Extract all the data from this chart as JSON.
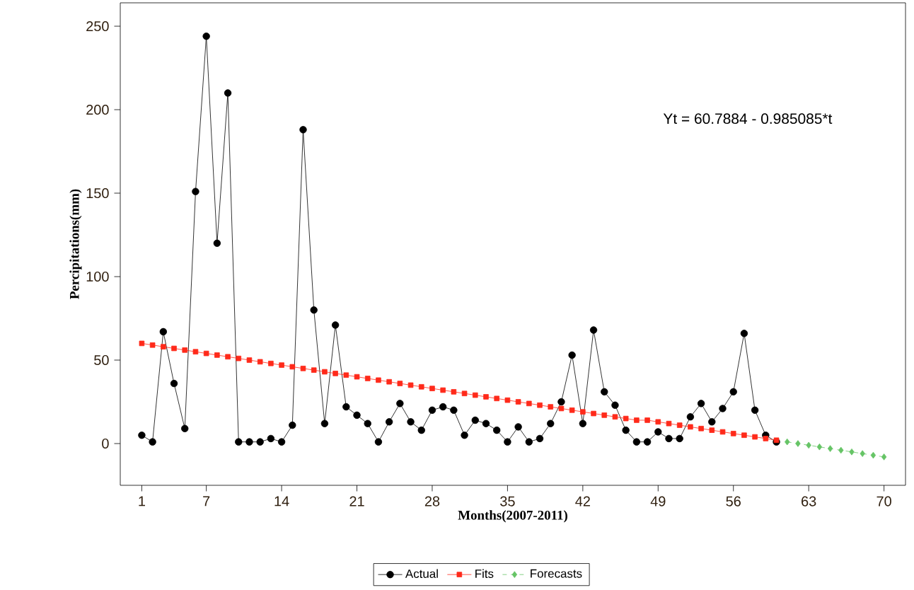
{
  "chart_data": {
    "type": "line",
    "xlabel": "Months(2007-2011)",
    "ylabel": "Percipitations(mm)",
    "annotations": [
      "Yt = 60.7884 - 0.985085*t"
    ],
    "xlim": [
      -1,
      72
    ],
    "ylim": [
      -25,
      264
    ],
    "xticks": [
      1,
      7,
      14,
      21,
      28,
      35,
      42,
      49,
      56,
      63,
      70
    ],
    "yticks": [
      0,
      50,
      100,
      150,
      200,
      250
    ],
    "grid": false,
    "legend": "bottom",
    "series": [
      {
        "name": "Actual",
        "color": "#000000",
        "marker": "circle",
        "line_style": "solid",
        "x": [
          1,
          2,
          3,
          4,
          5,
          6,
          7,
          8,
          9,
          10,
          11,
          12,
          13,
          14,
          15,
          16,
          17,
          18,
          19,
          20,
          21,
          22,
          23,
          24,
          25,
          26,
          27,
          28,
          29,
          30,
          31,
          32,
          33,
          34,
          35,
          36,
          37,
          38,
          39,
          40,
          41,
          42,
          43,
          44,
          45,
          46,
          47,
          48,
          49,
          50,
          51,
          52,
          53,
          54,
          55,
          56,
          57,
          58,
          59,
          60
        ],
        "values": [
          5,
          1,
          67,
          36,
          9,
          151,
          244,
          120,
          210,
          1,
          1,
          1,
          3,
          1,
          11,
          188,
          80,
          12,
          71,
          22,
          17,
          12,
          1,
          13,
          24,
          13,
          8,
          20,
          22,
          20,
          5,
          14,
          12,
          8,
          1,
          10,
          1,
          3,
          12,
          25,
          53,
          12,
          68,
          31,
          23,
          8,
          1,
          1,
          7,
          3,
          3,
          16,
          24,
          13,
          21,
          31,
          66,
          20,
          5,
          1
        ]
      },
      {
        "name": "Fits",
        "color": "#ff2a1a",
        "marker": "square",
        "line_style": "solid",
        "x": [
          1,
          2,
          3,
          4,
          5,
          6,
          7,
          8,
          9,
          10,
          11,
          12,
          13,
          14,
          15,
          16,
          17,
          18,
          19,
          20,
          21,
          22,
          23,
          24,
          25,
          26,
          27,
          28,
          29,
          30,
          31,
          32,
          33,
          34,
          35,
          36,
          37,
          38,
          39,
          40,
          41,
          42,
          43,
          44,
          45,
          46,
          47,
          48,
          49,
          50,
          51,
          52,
          53,
          54,
          55,
          56,
          57,
          58,
          59,
          60
        ],
        "values": [
          60,
          59,
          58,
          57,
          56,
          55,
          54,
          53,
          52,
          51,
          50,
          49,
          48,
          47,
          46,
          45,
          44,
          43,
          42,
          41,
          40,
          39,
          38,
          37,
          36,
          35,
          34,
          33,
          32,
          31,
          30,
          29,
          28,
          27,
          26,
          25,
          24,
          23,
          22,
          21,
          20,
          19,
          18,
          17,
          16,
          15,
          14,
          14,
          13,
          12,
          11,
          10,
          9,
          8,
          7,
          6,
          5,
          4,
          3,
          2
        ]
      },
      {
        "name": "Forecasts",
        "color": "#66c466",
        "marker": "diamond",
        "line_style": "dashed",
        "x": [
          61,
          62,
          63,
          64,
          65,
          66,
          67,
          68,
          69,
          70
        ],
        "values": [
          1,
          0,
          -1,
          -2,
          -3,
          -4,
          -5,
          -6,
          -7,
          -8
        ]
      }
    ]
  }
}
